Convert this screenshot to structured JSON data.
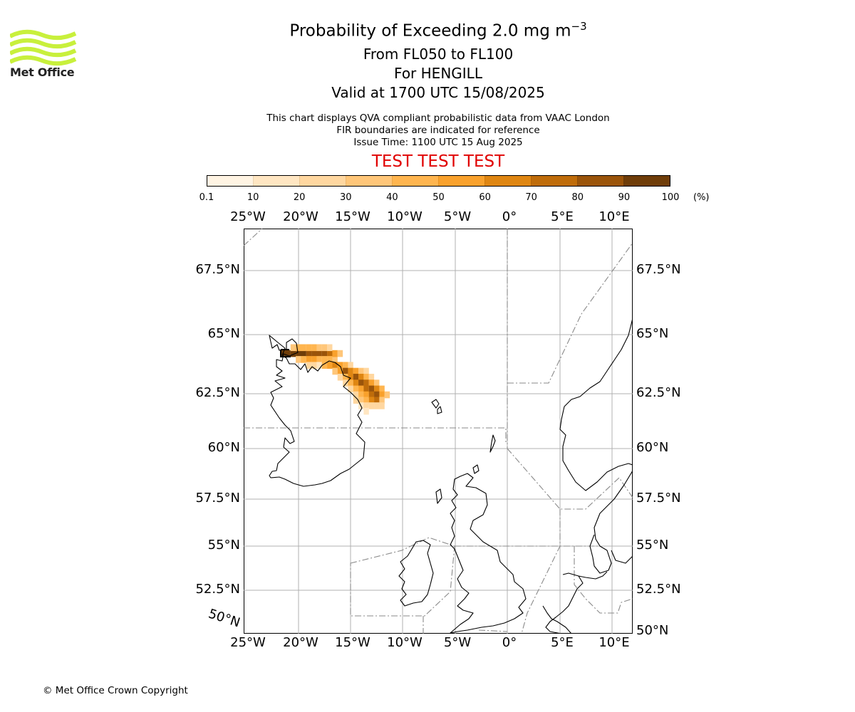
{
  "brand": {
    "logo_text": "Met Office",
    "logo_color": "#c8f03c",
    "copyright": "© Met Office Crown Copyright"
  },
  "header": {
    "title_main": "Probability of Exceeding 2.0 mg m",
    "title_sup": "−3",
    "flight_levels": "From FL050 to FL100",
    "volcano": "For HENGILL",
    "valid_time": "Valid at 1700 UTC 15/08/2025",
    "note_qva": "This chart displays QVA compliant probabilistic data from VAAC London",
    "note_fir": "FIR boundaries are indicated for reference",
    "issue_time": "Issue Time: 1100 UTC 15 Aug 2025",
    "test_banner": "TEST TEST TEST",
    "test_color": "#e00000"
  },
  "colorbar": {
    "ticks": [
      "0.1",
      "10",
      "20",
      "30",
      "40",
      "50",
      "60",
      "70",
      "80",
      "90",
      "100"
    ],
    "unit": "(%)",
    "colors": [
      "#fff4e3",
      "#ffe6c2",
      "#ffd7a0",
      "#ffc679",
      "#ffb54f",
      "#f9a12c",
      "#df8612",
      "#bf6c0a",
      "#9a540a",
      "#6f3d09"
    ]
  },
  "map": {
    "lon_labels": [
      "25°W",
      "20°W",
      "15°W",
      "10°W",
      "5°W",
      "0°",
      "5°E",
      "10°E"
    ],
    "lat_labels_left": [
      "67.5°N",
      "65°N",
      "62.5°N",
      "60°N",
      "57.5°N",
      "55°N",
      "52.5°N"
    ],
    "lat_labels_right": [
      "67.5°N",
      "65°N",
      "62.5°N",
      "60°N",
      "57.5°N",
      "55°N",
      "52.5°N",
      "50°N"
    ],
    "corner_label": "50°N",
    "volcano_lonlat": [
      -21.3,
      64.1
    ],
    "plume_probability": [
      {
        "lon": -21.5,
        "lat": 64.2,
        "p": 95
      },
      {
        "lon": -21.0,
        "lat": 64.2,
        "p": 95
      },
      {
        "lon": -20.5,
        "lat": 64.2,
        "p": 92
      },
      {
        "lon": -20.0,
        "lat": 64.2,
        "p": 90
      },
      {
        "lon": -19.5,
        "lat": 64.2,
        "p": 90
      },
      {
        "lon": -19.0,
        "lat": 64.2,
        "p": 88
      },
      {
        "lon": -18.5,
        "lat": 64.2,
        "p": 85
      },
      {
        "lon": -18.0,
        "lat": 64.2,
        "p": 85
      },
      {
        "lon": -17.5,
        "lat": 64.2,
        "p": 80
      },
      {
        "lon": -17.0,
        "lat": 64.2,
        "p": 75
      },
      {
        "lon": -20.5,
        "lat": 64.45,
        "p": 35
      },
      {
        "lon": -20.0,
        "lat": 64.45,
        "p": 40
      },
      {
        "lon": -19.5,
        "lat": 64.45,
        "p": 45
      },
      {
        "lon": -19.0,
        "lat": 64.45,
        "p": 45
      },
      {
        "lon": -18.5,
        "lat": 64.45,
        "p": 40
      },
      {
        "lon": -18.0,
        "lat": 64.45,
        "p": 35
      },
      {
        "lon": -17.5,
        "lat": 64.45,
        "p": 30
      },
      {
        "lon": -17.0,
        "lat": 64.45,
        "p": 25
      },
      {
        "lon": -20.0,
        "lat": 63.95,
        "p": 30
      },
      {
        "lon": -19.5,
        "lat": 63.95,
        "p": 45
      },
      {
        "lon": -19.0,
        "lat": 63.95,
        "p": 55
      },
      {
        "lon": -18.5,
        "lat": 63.95,
        "p": 50
      },
      {
        "lon": -18.0,
        "lat": 63.95,
        "p": 45
      },
      {
        "lon": -17.5,
        "lat": 63.95,
        "p": 40
      },
      {
        "lon": -17.0,
        "lat": 63.95,
        "p": 45
      },
      {
        "lon": -16.5,
        "lat": 63.95,
        "p": 35
      },
      {
        "lon": -16.5,
        "lat": 64.2,
        "p": 55
      },
      {
        "lon": -16.0,
        "lat": 64.2,
        "p": 30
      },
      {
        "lon": -19.0,
        "lat": 63.7,
        "p": 20
      },
      {
        "lon": -18.5,
        "lat": 63.7,
        "p": 25
      },
      {
        "lon": -18.0,
        "lat": 63.7,
        "p": 15
      },
      {
        "lon": -17.5,
        "lat": 63.7,
        "p": 40
      },
      {
        "lon": -17.0,
        "lat": 63.7,
        "p": 55
      },
      {
        "lon": -16.5,
        "lat": 63.7,
        "p": 60
      },
      {
        "lon": -16.0,
        "lat": 63.7,
        "p": 55
      },
      {
        "lon": -15.5,
        "lat": 63.7,
        "p": 40
      },
      {
        "lon": -15.0,
        "lat": 63.7,
        "p": 25
      },
      {
        "lon": -16.5,
        "lat": 63.45,
        "p": 35
      },
      {
        "lon": -16.0,
        "lat": 63.45,
        "p": 55
      },
      {
        "lon": -15.5,
        "lat": 63.45,
        "p": 80
      },
      {
        "lon": -15.0,
        "lat": 63.45,
        "p": 65
      },
      {
        "lon": -14.5,
        "lat": 63.45,
        "p": 50
      },
      {
        "lon": -14.0,
        "lat": 63.45,
        "p": 35
      },
      {
        "lon": -13.5,
        "lat": 63.45,
        "p": 20
      },
      {
        "lon": -16.0,
        "lat": 63.2,
        "p": 25
      },
      {
        "lon": -15.5,
        "lat": 63.2,
        "p": 45
      },
      {
        "lon": -15.0,
        "lat": 63.2,
        "p": 65
      },
      {
        "lon": -14.5,
        "lat": 63.2,
        "p": 80
      },
      {
        "lon": -14.0,
        "lat": 63.2,
        "p": 65
      },
      {
        "lon": -13.5,
        "lat": 63.2,
        "p": 45
      },
      {
        "lon": -13.0,
        "lat": 63.2,
        "p": 25
      },
      {
        "lon": -15.5,
        "lat": 62.95,
        "p": 20
      },
      {
        "lon": -15.0,
        "lat": 62.95,
        "p": 40
      },
      {
        "lon": -14.5,
        "lat": 62.95,
        "p": 60
      },
      {
        "lon": -14.0,
        "lat": 62.95,
        "p": 80
      },
      {
        "lon": -13.5,
        "lat": 62.95,
        "p": 70
      },
      {
        "lon": -13.0,
        "lat": 62.95,
        "p": 50
      },
      {
        "lon": -12.5,
        "lat": 62.95,
        "p": 30
      },
      {
        "lon": -15.0,
        "lat": 62.7,
        "p": 25
      },
      {
        "lon": -14.5,
        "lat": 62.7,
        "p": 40
      },
      {
        "lon": -14.0,
        "lat": 62.7,
        "p": 55
      },
      {
        "lon": -13.5,
        "lat": 62.7,
        "p": 75
      },
      {
        "lon": -13.0,
        "lat": 62.7,
        "p": 85
      },
      {
        "lon": -12.5,
        "lat": 62.7,
        "p": 65
      },
      {
        "lon": -12.0,
        "lat": 62.7,
        "p": 40
      },
      {
        "lon": -14.5,
        "lat": 62.45,
        "p": 25
      },
      {
        "lon": -14.0,
        "lat": 62.45,
        "p": 40
      },
      {
        "lon": -13.5,
        "lat": 62.45,
        "p": 55
      },
      {
        "lon": -13.0,
        "lat": 62.45,
        "p": 70
      },
      {
        "lon": -12.5,
        "lat": 62.45,
        "p": 80
      },
      {
        "lon": -12.0,
        "lat": 62.45,
        "p": 55
      },
      {
        "lon": -11.5,
        "lat": 62.45,
        "p": 30
      },
      {
        "lon": -14.5,
        "lat": 62.2,
        "p": 20
      },
      {
        "lon": -14.0,
        "lat": 62.2,
        "p": 30
      },
      {
        "lon": -13.5,
        "lat": 62.2,
        "p": 45
      },
      {
        "lon": -13.0,
        "lat": 62.2,
        "p": 65
      },
      {
        "lon": -12.5,
        "lat": 62.2,
        "p": 70
      },
      {
        "lon": -12.0,
        "lat": 62.2,
        "p": 35
      },
      {
        "lon": -14.0,
        "lat": 61.95,
        "p": 15
      },
      {
        "lon": -13.5,
        "lat": 61.95,
        "p": 20
      },
      {
        "lon": -13.0,
        "lat": 61.95,
        "p": 25
      },
      {
        "lon": -12.5,
        "lat": 61.95,
        "p": 25
      },
      {
        "lon": -12.0,
        "lat": 61.95,
        "p": 20
      },
      {
        "lon": -13.5,
        "lat": 61.7,
        "p": 10
      }
    ]
  }
}
